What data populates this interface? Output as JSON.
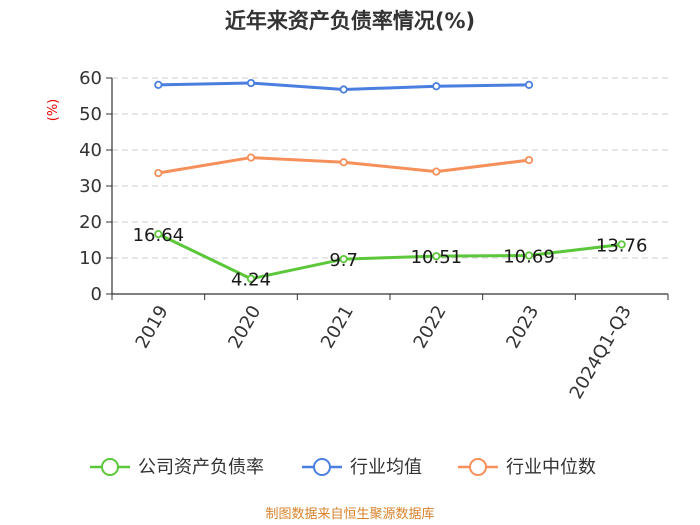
{
  "chart_data": {
    "type": "line",
    "title": "近年来资产负债率情况(%)",
    "unit_label": "(%)",
    "categories": [
      "2019",
      "2020",
      "2021",
      "2022",
      "2023",
      "2024Q1-Q3"
    ],
    "ylim": [
      0,
      60
    ],
    "yticks": [
      0,
      10,
      20,
      30,
      40,
      50,
      60
    ],
    "grid": true,
    "legend_position": "bottom",
    "series": [
      {
        "name": "公司资产负债率",
        "color": "#5cc73a",
        "values": [
          16.64,
          4.24,
          9.7,
          10.51,
          10.69,
          13.76
        ],
        "labels": [
          "16.64",
          "4.24",
          "9.7",
          "10.51",
          "10.69",
          "13.76"
        ]
      },
      {
        "name": "行业均值",
        "color": "#4a7fe0",
        "values": [
          58.1,
          58.6,
          56.8,
          57.7,
          58.1,
          null
        ]
      },
      {
        "name": "行业中位数",
        "color": "#f5905a",
        "values": [
          33.6,
          37.9,
          36.6,
          34.0,
          37.2,
          null
        ]
      }
    ]
  },
  "source": "制图数据来自恒生聚源数据库"
}
